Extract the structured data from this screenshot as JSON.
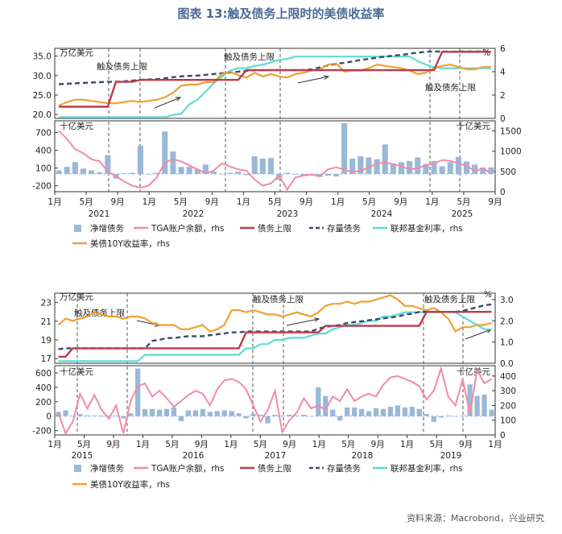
{
  "figure_title": "图表 13:触及债务上限时的美债收益率",
  "source": "资料来源：Macrobond，兴业研究",
  "legend": {
    "net_issuance": "净增债务",
    "tga": "TGA账户余额，rhs",
    "debt_ceiling": "债务上限",
    "debt_stock": "存量债务",
    "fed_rate": "联邦基金利率，rhs",
    "yield": "美债10Y收益率，rhs"
  },
  "colors": {
    "net_issuance": "#9ab8d8",
    "tga": "#f28aa8",
    "debt_ceiling": "#c0394b",
    "debt_stock": "#3b4a6b",
    "fed_rate": "#5ddbd8",
    "yield": "#f0a030",
    "title": "#4a6a96"
  },
  "chart_data": [
    {
      "type": "line",
      "panel": "top",
      "units_left": "万亿美元",
      "units_right": "%",
      "y_left_ticks": [
        "35.0",
        "30.0",
        "25.0",
        "20.0"
      ],
      "y_left_range": [
        19,
        37
      ],
      "y_right_ticks": [
        "6",
        "4",
        "2",
        "0"
      ],
      "y_right_range": [
        0,
        6
      ],
      "annotations": [
        "触及债务上限",
        "触及债务上限",
        "触及债务上限"
      ],
      "x": [
        0,
        1,
        2,
        3,
        4,
        5,
        6,
        7,
        8,
        9,
        10,
        11,
        12,
        13,
        14,
        15,
        16,
        17,
        18,
        19,
        20,
        21,
        22,
        23,
        24,
        25,
        26,
        27,
        28,
        29,
        30,
        31,
        32,
        33,
        34,
        35,
        36,
        37,
        38,
        39,
        40,
        41,
        42,
        43,
        44,
        45,
        46,
        47,
        48,
        49,
        50,
        51,
        52,
        53
      ],
      "series": [
        {
          "name": "债务上限",
          "axis": "left",
          "values": [
            22,
            22,
            22,
            22,
            22,
            22,
            22,
            28.4,
            28.4,
            28.4,
            28.9,
            28.9,
            28.9,
            28.9,
            28.9,
            28.9,
            28.9,
            28.9,
            28.9,
            28.9,
            28.9,
            28.9,
            28.9,
            31.4,
            31.4,
            31.4,
            31.4,
            31.4,
            31.4,
            31.4,
            31.4,
            31.4,
            31.4,
            31.4,
            31.4,
            31.4,
            31.4,
            31.4,
            31.4,
            31.4,
            31.4,
            31.4,
            31.4,
            31.4,
            31.4,
            31.4,
            31.4,
            36.1,
            36.1,
            36.1,
            36.1,
            36.1,
            36.1,
            36.1
          ]
        },
        {
          "name": "存量债务",
          "axis": "left",
          "values": [
            27.8,
            27.9,
            28,
            28.1,
            28.2,
            28.3,
            28.4,
            28.4,
            28.5,
            28.7,
            28.9,
            29,
            29.1,
            29.3,
            29.6,
            29.8,
            29.9,
            30,
            30.2,
            30.4,
            30.6,
            30.8,
            31,
            31.2,
            31.4,
            31.4,
            31.4,
            31.4,
            31.4,
            31.4,
            31.4,
            31.6,
            32.1,
            32.6,
            33,
            33.3,
            33.6,
            34,
            34.3,
            34.6,
            34.9,
            35.1,
            35.3,
            35.6,
            35.9,
            36.1,
            36.2,
            36.2,
            36.1,
            36.2,
            36.2,
            36.2,
            36.2,
            36.2
          ]
        },
        {
          "name": "TGA账户余额",
          "axis": "right",
          "values": [
            1500,
            1300,
            1050,
            950,
            800,
            750,
            500,
            380,
            250,
            150,
            100,
            150,
            350,
            720,
            800,
            750,
            650,
            550,
            450,
            520,
            700,
            620,
            550,
            520,
            300,
            150,
            200,
            400,
            50,
            350,
            400,
            420,
            380,
            550,
            600,
            550,
            480,
            520,
            600,
            700,
            720,
            680,
            620,
            550,
            580,
            650,
            700,
            780,
            760,
            700,
            650,
            500,
            580,
            450
          ]
        },
        {
          "name": "联邦基金利率",
          "axis": "right",
          "values": [
            0.1,
            0.1,
            0.1,
            0.1,
            0.1,
            0.1,
            0.1,
            0.1,
            0.1,
            0.1,
            0.1,
            0.1,
            0.1,
            0.1,
            0.3,
            0.4,
            1.2,
            1.6,
            2.3,
            3,
            3.6,
            4.1,
            4.3,
            4.3,
            4.5,
            4.6,
            4.8,
            5,
            5.1,
            5.3,
            5.3,
            5.3,
            5.3,
            5.3,
            5.3,
            5.3,
            5.3,
            5.3,
            5.3,
            5.3,
            5.3,
            5.3,
            5.3,
            5.3,
            4.9,
            4.6,
            4.4,
            4.3,
            4.3,
            4.3,
            4.3,
            4.3,
            4.3,
            4.3
          ]
        },
        {
          "name": "美债10Y收益率",
          "axis": "right",
          "values": [
            1.1,
            1.4,
            1.6,
            1.6,
            1.5,
            1.4,
            1.3,
            1.3,
            1.4,
            1.5,
            1.4,
            1.5,
            1.6,
            1.8,
            2.2,
            2.8,
            2.9,
            2.9,
            3.1,
            3.1,
            3.8,
            4,
            3.7,
            3.5,
            3.9,
            3.6,
            3.8,
            3.6,
            3.5,
            3.8,
            3.9,
            4.1,
            4.2,
            4.6,
            4.7,
            4,
            4.1,
            4.1,
            4.3,
            4.6,
            4.5,
            4.4,
            4.3,
            4.1,
            3.8,
            3.9,
            4.3,
            4.5,
            4.6,
            4.4,
            4.2,
            4.2,
            4.4,
            4.4
          ]
        }
      ]
    },
    {
      "type": "bar",
      "panel": "top-lower",
      "units_left": "十亿美元",
      "units_right": "十亿美元",
      "y_left_ticks": [
        "700",
        "400",
        "100",
        "-200"
      ],
      "y_left_range": [
        -300,
        900
      ],
      "y_right_ticks": [
        "1500",
        "1000",
        "500",
        "0"
      ],
      "y_right_range": [
        0,
        1750
      ],
      "x_tick_labels": [
        "1月",
        "5月",
        "9月",
        "1月",
        "5月",
        "9月",
        "1月",
        "5月",
        "9月",
        "1月",
        "5月",
        "9月",
        "1月",
        "5月",
        "9月"
      ],
      "year_labels": [
        "2021",
        "2022",
        "2023",
        "2024",
        "2025"
      ],
      "series": [
        {
          "name": "净增债务",
          "values": [
            60,
            120,
            200,
            90,
            60,
            30,
            320,
            -80,
            10,
            20,
            480,
            -10,
            20,
            720,
            380,
            120,
            120,
            80,
            160,
            40,
            0,
            20,
            40,
            -20,
            300,
            260,
            270,
            -100,
            20,
            -10,
            -20,
            -30,
            -50,
            -30,
            -40,
            860,
            260,
            300,
            280,
            250,
            500,
            180,
            200,
            220,
            280,
            170,
            220,
            130,
            200,
            290,
            210,
            160,
            110,
            110
          ]
        }
      ]
    },
    {
      "type": "line",
      "panel": "bottom",
      "units_left": "万亿美元",
      "units_right": "%",
      "y_left_ticks": [
        "23",
        "21",
        "19",
        "17"
      ],
      "y_left_range": [
        16.5,
        24
      ],
      "y_right_ticks": [
        "3.0",
        "2.0",
        "1.0",
        "0.0"
      ],
      "y_right_range": [
        0,
        3.3
      ],
      "annotations": [
        "触及债务上限",
        "触及债务上限",
        "触及债务上限",
        "触及债务上限"
      ],
      "x": [
        0,
        1,
        2,
        3,
        4,
        5,
        6,
        7,
        8,
        9,
        10,
        11,
        12,
        13,
        14,
        15,
        16,
        17,
        18,
        19,
        20,
        21,
        22,
        23,
        24,
        25,
        26,
        27,
        28,
        29,
        30,
        31,
        32,
        33,
        34,
        35,
        36,
        37,
        38,
        39,
        40,
        41,
        42,
        43,
        44,
        45,
        46,
        47,
        48,
        49,
        50,
        51,
        52,
        53,
        54,
        55,
        56,
        57,
        58,
        59,
        60
      ],
      "series": [
        {
          "name": "债务上限",
          "axis": "left",
          "values": [
            17.2,
            17.2,
            18.1,
            18.1,
            18.1,
            18.1,
            18.1,
            18.1,
            18.1,
            18.1,
            18.1,
            18.1,
            18.1,
            18.1,
            18.1,
            18.1,
            18.1,
            18.1,
            18.1,
            18.1,
            18.1,
            18.1,
            18.1,
            18.1,
            18.1,
            18.1,
            19.8,
            19.8,
            19.8,
            19.8,
            19.8,
            19.8,
            19.8,
            19.8,
            19.8,
            19.8,
            19.8,
            20.5,
            20.5,
            20.5,
            20.5,
            20.5,
            20.5,
            20.5,
            20.5,
            20.5,
            20.5,
            20.5,
            20.5,
            20.5,
            20.5,
            22,
            22,
            22,
            22,
            22,
            22,
            22,
            22,
            22,
            22
          ]
        },
        {
          "name": "存量债务",
          "axis": "left",
          "values": [
            18,
            18.1,
            18.1,
            18.1,
            18.1,
            18.1,
            18.1,
            18.1,
            18.1,
            18.1,
            18.1,
            18.1,
            18.1,
            18.9,
            19,
            19.2,
            19.2,
            19.3,
            19.4,
            19.4,
            19.4,
            19.5,
            19.6,
            19.7,
            19.8,
            19.8,
            19.9,
            19.9,
            19.9,
            19.9,
            19.9,
            19.9,
            19.9,
            19.9,
            19.9,
            19.9,
            20.2,
            20.4,
            20.5,
            20.6,
            20.8,
            20.9,
            21,
            21.1,
            21.2,
            21.3,
            21.4,
            21.5,
            21.7,
            21.8,
            22,
            22,
            22,
            22,
            22,
            22,
            22.1,
            22.3,
            22.5,
            22.7,
            22.8
          ]
        },
        {
          "name": "TGA账户余额",
          "axis": "right",
          "values": [
            150,
            10,
            90,
            280,
            180,
            270,
            170,
            110,
            200,
            10,
            230,
            330,
            350,
            260,
            300,
            250,
            190,
            230,
            270,
            300,
            280,
            200,
            310,
            370,
            380,
            360,
            310,
            200,
            90,
            170,
            300,
            20,
            100,
            150,
            250,
            180,
            200,
            170,
            260,
            230,
            310,
            230,
            260,
            280,
            260,
            340,
            390,
            400,
            380,
            360,
            330,
            240,
            300,
            450,
            260,
            200,
            380,
            140,
            440,
            350,
            380
          ]
        },
        {
          "name": "联邦基金利率",
          "axis": "right",
          "values": [
            0.1,
            0.1,
            0.1,
            0.1,
            0.1,
            0.1,
            0.1,
            0.1,
            0.1,
            0.1,
            0.1,
            0.1,
            0.4,
            0.4,
            0.4,
            0.4,
            0.4,
            0.4,
            0.4,
            0.4,
            0.4,
            0.4,
            0.4,
            0.4,
            0.4,
            0.4,
            0.7,
            0.7,
            0.9,
            0.9,
            1.1,
            1.1,
            1.2,
            1.2,
            1.2,
            1.3,
            1.4,
            1.4,
            1.6,
            1.7,
            1.8,
            1.8,
            1.9,
            2,
            2,
            2.2,
            2.2,
            2.3,
            2.4,
            2.4,
            2.4,
            2.4,
            2.4,
            2.4,
            2.4,
            2.4,
            2.2,
            2,
            1.8,
            1.6,
            1.6
          ]
        },
        {
          "name": "美债10Y收益率",
          "axis": "right",
          "values": [
            1.8,
            2.1,
            2,
            2.1,
            2.2,
            2.4,
            2.3,
            2.2,
            2.2,
            2.1,
            2.2,
            2.2,
            2.1,
            1.9,
            1.8,
            1.8,
            1.8,
            1.6,
            1.6,
            1.7,
            1.8,
            1.5,
            1.6,
            1.8,
            2.5,
            2.5,
            2.4,
            2.5,
            2.4,
            2.3,
            2.3,
            2.2,
            2.3,
            2.4,
            2.3,
            2.2,
            2.4,
            2.7,
            2.8,
            2.8,
            2.9,
            2.8,
            2.9,
            2.9,
            3,
            3.1,
            3.2,
            3,
            2.7,
            2.7,
            2.6,
            2.5,
            2.6,
            2.4,
            2.1,
            1.5,
            1.7,
            1.7,
            1.8,
            1.8,
            1.9
          ]
        }
      ]
    },
    {
      "type": "bar",
      "panel": "bottom-lower",
      "units_left": "十亿美元",
      "units_right": "十亿美元",
      "y_left_ticks": [
        "600",
        "400",
        "200",
        "0",
        "-200"
      ],
      "y_left_range": [
        -260,
        700
      ],
      "y_right_ticks": [
        "400",
        "300",
        "200",
        "100",
        "0"
      ],
      "y_right_range": [
        0,
        470
      ],
      "x_tick_labels": [
        "1月",
        "5月",
        "9月",
        "1月",
        "5月",
        "9月",
        "1月",
        "5月",
        "9月",
        "1月",
        "5月",
        "9月",
        "1月",
        "5月",
        "9月",
        "1月"
      ],
      "year_labels": [
        "2015",
        "2016",
        "2017",
        "2018",
        "2019"
      ],
      "series": [
        {
          "name": "净增债务",
          "values": [
            60,
            80,
            10,
            30,
            10,
            10,
            10,
            10,
            10,
            -30,
            40,
            660,
            100,
            100,
            90,
            100,
            120,
            -70,
            80,
            80,
            100,
            60,
            70,
            80,
            70,
            40,
            -30,
            30,
            20,
            -100,
            20,
            10,
            20,
            10,
            20,
            0,
            400,
            280,
            90,
            -60,
            120,
            120,
            100,
            70,
            110,
            100,
            130,
            150,
            120,
            130,
            100,
            30,
            -80,
            -20,
            10,
            0,
            10,
            440,
            280,
            300,
            90
          ]
        }
      ]
    }
  ]
}
